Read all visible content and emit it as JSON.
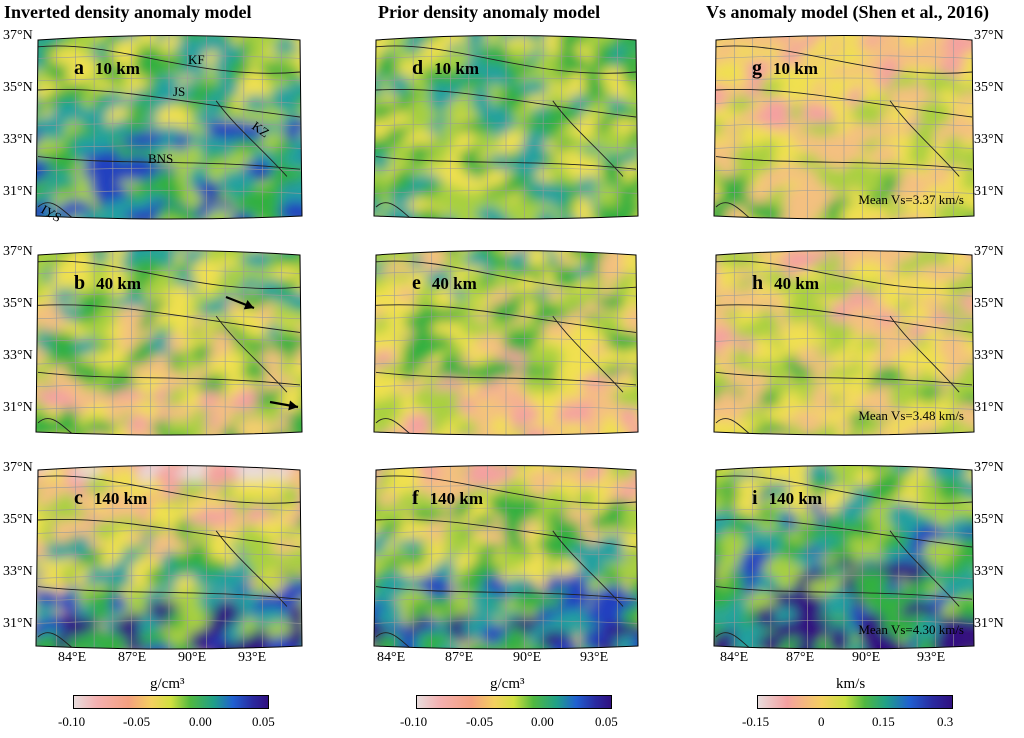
{
  "columns": [
    {
      "title": "Inverted density anomaly model"
    },
    {
      "title": "Prior density anomaly model"
    },
    {
      "title": "Vs anomaly model (Shen et al., 2016)"
    }
  ],
  "panels": [
    {
      "letter": "a",
      "depth": "10 km",
      "mean": null
    },
    {
      "letter": "b",
      "depth": "40 km",
      "mean": null
    },
    {
      "letter": "c",
      "depth": "140 km",
      "mean": null
    },
    {
      "letter": "d",
      "depth": "10 km",
      "mean": null
    },
    {
      "letter": "e",
      "depth": "40 km",
      "mean": null
    },
    {
      "letter": "f",
      "depth": "140 km",
      "mean": null
    },
    {
      "letter": "g",
      "depth": "10 km",
      "mean": "Mean Vs=3.37 km/s"
    },
    {
      "letter": "h",
      "depth": "40 km",
      "mean": "Mean Vs=3.48 km/s"
    },
    {
      "letter": "i",
      "depth": "140 km",
      "mean": "Mean Vs=4.30 km/s"
    }
  ],
  "faults": [
    "KF",
    "JS",
    "KZ",
    "BNS",
    "IYS"
  ],
  "latitude_labels": [
    "37°N",
    "35°N",
    "33°N",
    "31°N"
  ],
  "longitude_labels": [
    "84°E",
    "87°E",
    "90°E",
    "93°E"
  ],
  "colorbars": [
    {
      "unit": "g/cm³",
      "ticks": [
        "-0.10",
        "-0.05",
        "0.00",
        "0.05"
      ]
    },
    {
      "unit": "g/cm³",
      "ticks": [
        "-0.10",
        "-0.05",
        "0.00",
        "0.05"
      ]
    },
    {
      "unit": "km/s",
      "ticks": [
        "-0.15",
        "0",
        "0.15",
        "0.3"
      ]
    }
  ],
  "colors": {
    "c1": "#e8dcdc",
    "c2": "#f4a0a0",
    "c3": "#f4c080",
    "c4": "#f0e050",
    "c5": "#a8d040",
    "c6": "#30b040",
    "c7": "#20a0a0",
    "c8": "#2040c0",
    "c9": "#301080"
  }
}
